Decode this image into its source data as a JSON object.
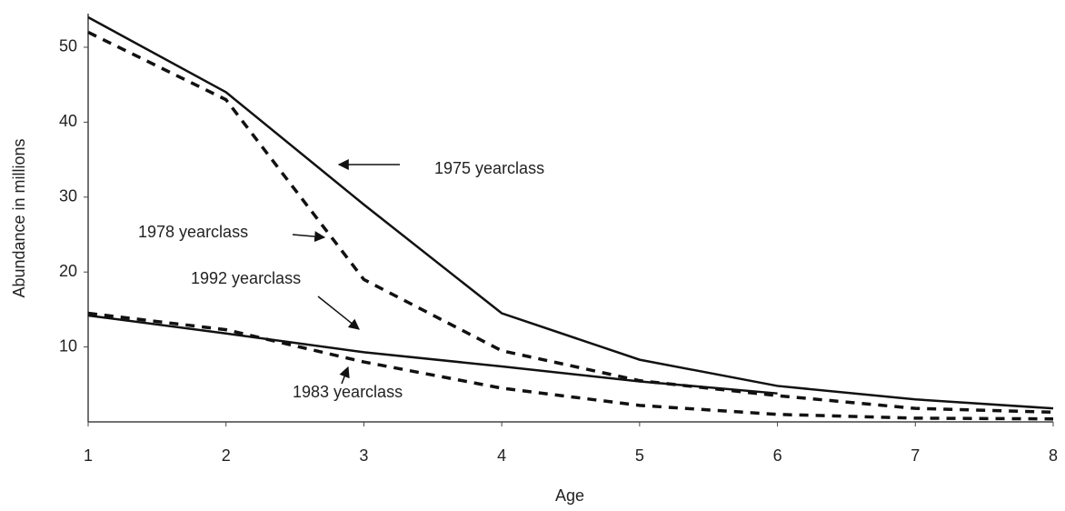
{
  "chart_data": {
    "type": "line",
    "xlabel": "Age",
    "ylabel": "Abundance in millions",
    "x": [
      1,
      2,
      3,
      4,
      5,
      6,
      7,
      8
    ],
    "xlim": [
      1,
      8
    ],
    "xticks": [
      1,
      2,
      3,
      4,
      5,
      6,
      7,
      8
    ],
    "ylim": [
      0,
      54
    ],
    "yticks": [
      10,
      20,
      30,
      40,
      50
    ],
    "grid": false,
    "series": [
      {
        "name": "1975 yearclass",
        "color": "#111111",
        "style": "solid",
        "values": [
          54,
          44,
          29,
          14.5,
          8.3,
          4.8,
          3,
          1.8
        ]
      },
      {
        "name": "1978 yearclass",
        "color": "#111111",
        "style": "dashed",
        "values": [
          52,
          43,
          19,
          9.5,
          5.5,
          3.5,
          1.8,
          1.3
        ]
      },
      {
        "name": "1992 yearclass",
        "color": "#111111",
        "style": "solid",
        "values": [
          14.2,
          11.8,
          9.3,
          7.4,
          5.4,
          3.8,
          null,
          null
        ]
      },
      {
        "name": "1983 yearclass",
        "color": "#111111",
        "style": "dashed",
        "values": [
          14.5,
          12.3,
          8,
          4.5,
          2.2,
          1,
          0.5,
          0.4
        ]
      }
    ]
  }
}
